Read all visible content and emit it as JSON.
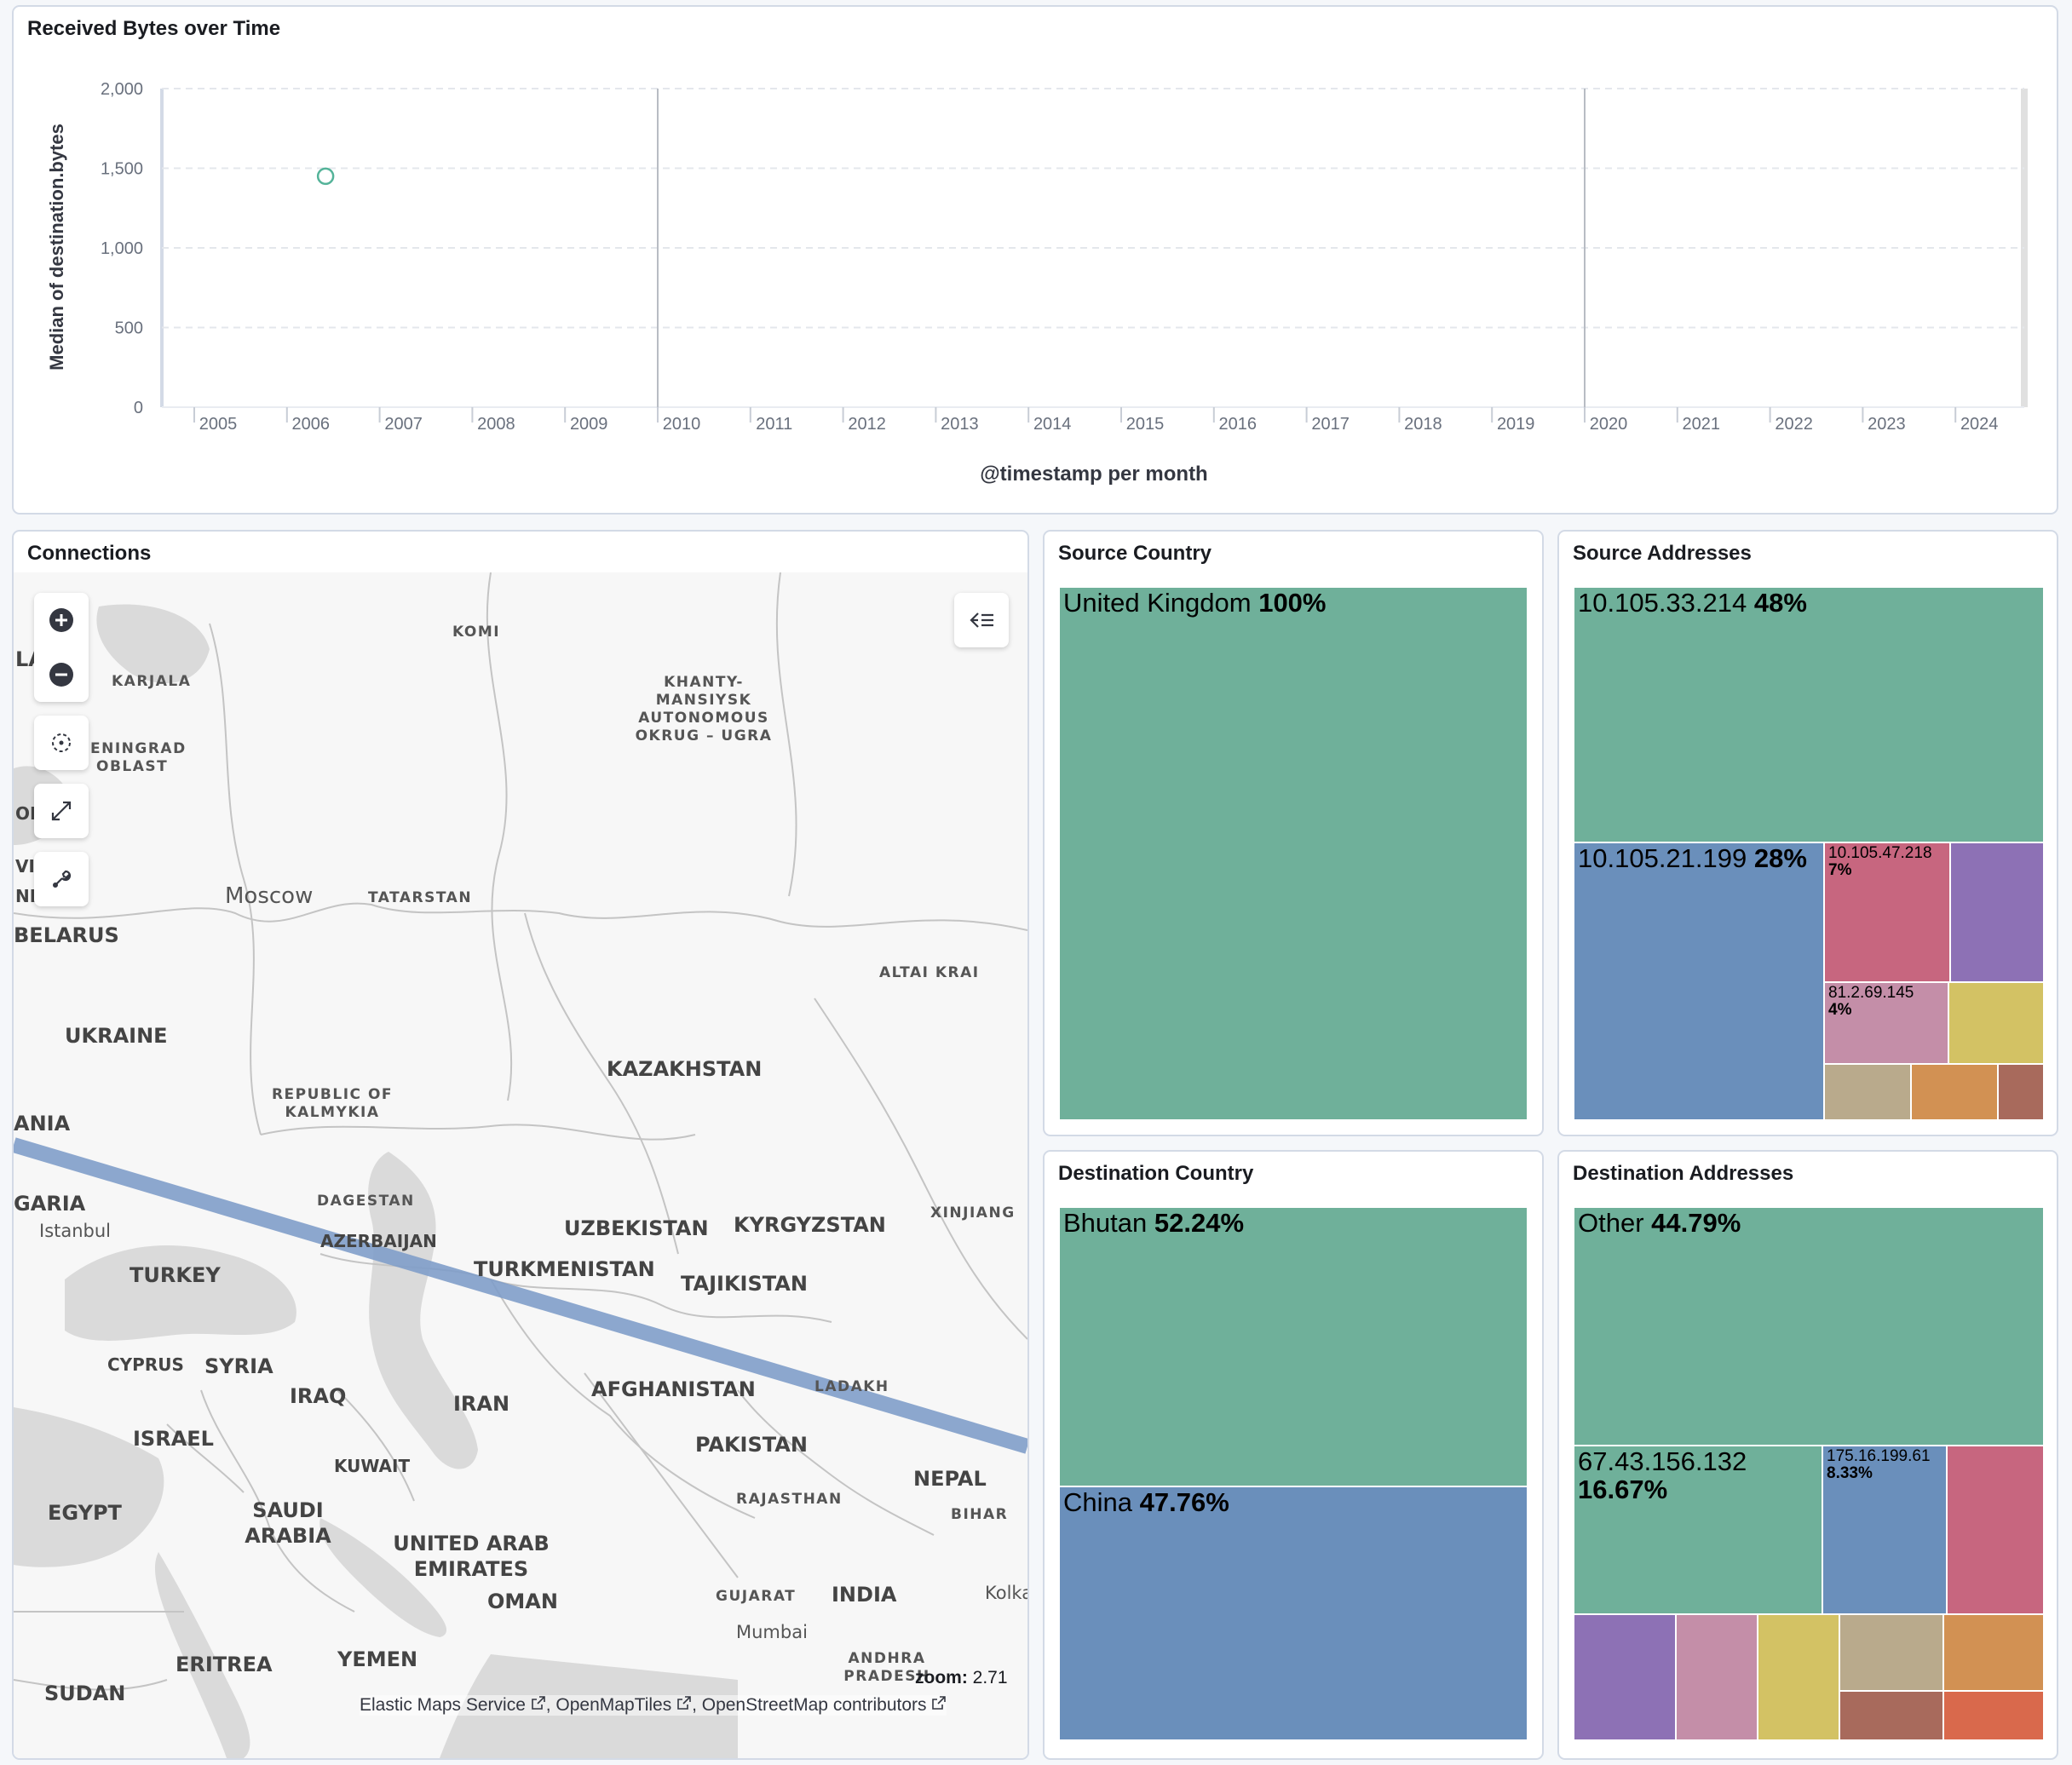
{
  "line_panel": {
    "title": "Received Bytes over Time"
  },
  "chart_data": {
    "type": "scatter",
    "title": "Received Bytes over Time",
    "xlabel": "@timestamp per month",
    "ylabel": "Median of destination.bytes",
    "x_ticks": [
      "2005",
      "2006",
      "2007",
      "2008",
      "2009",
      "2010",
      "2011",
      "2012",
      "2013",
      "2014",
      "2015",
      "2016",
      "2017",
      "2018",
      "2019",
      "2020",
      "2021",
      "2022",
      "2023",
      "2024"
    ],
    "y_ticks": [
      "0",
      "500",
      "1,000",
      "1,500",
      "2,000"
    ],
    "ylim": [
      0,
      2000
    ],
    "grid": true,
    "series": [
      {
        "x": [
          "2006-06"
        ],
        "values": [
          1450
        ]
      }
    ],
    "colors": {
      "point": "#54b399"
    }
  },
  "map_panel": {
    "title": "Connections",
    "zoom_label": "zoom:",
    "zoom_value": "2.71",
    "attribution": [
      "Elastic Maps Service",
      "OpenMapTiles",
      "OpenStreetMap contributors"
    ],
    "labels": {
      "komi": "KOMI",
      "karjala": "KARJALA",
      "khanty": [
        "KHANTY-",
        "MANSIYSK",
        "AUTONOMOUS",
        "OKRUG – UGRA"
      ],
      "leningrad": [
        "ENINGRAD",
        "OBLAST"
      ],
      "moscow": "Moscow",
      "tatarstan": "TATARSTAN",
      "altai": "ALTAI KRAI",
      "belarus": "BELARUS",
      "ukraine": "UKRAINE",
      "kazakhstan": "KAZAKHSTAN",
      "kalmykia": [
        "REPUBLIC OF",
        "KALMYKIA"
      ],
      "dagestan": "DAGESTAN",
      "azerbaijan": "AZERBAIJAN",
      "uzbekistan": "UZBEKISTAN",
      "kyrgyzstan": "KYRGYZSTAN",
      "xinjiang": "XINJIANG",
      "turkmenistan": "TURKMENISTAN",
      "tajikistan": "TAJIKISTAN",
      "istanbul": "Istanbul",
      "turkey": "TURKEY",
      "cyprus": "CYPRUS",
      "syria": "SYRIA",
      "iraq": "IRAQ",
      "iran": "IRAN",
      "afghanistan": "AFGHANISTAN",
      "ladakh": "LADAKH",
      "israel": "ISRAEL",
      "kuwait": "KUWAIT",
      "pakistan": "PAKISTAN",
      "nepal": "NEPAL",
      "egypt": "EGYPT",
      "saudi": [
        "SAUDI",
        "ARABIA"
      ],
      "uae": [
        "UNITED ARAB",
        "EMIRATES"
      ],
      "rajasthan": "RAJASTHAN",
      "bihar": "BIHAR",
      "oman": "OMAN",
      "gujarat": "GUJARAT",
      "india": "INDIA",
      "kolka": "Kolka",
      "mumbai": "Mumbai",
      "yemen": "YEMEN",
      "eritrea": "ERITREA",
      "sudan": "SUDAN",
      "andhra": [
        "ANDHRA",
        "PRADESH"
      ],
      "la": "LA",
      "on": "ON",
      "via": "VIA",
      "nia": "NIA",
      "ania": "ANIA",
      "garia": "GARIA"
    }
  },
  "source_country": {
    "title": "Source Country",
    "cells": [
      {
        "label": "United Kingdom",
        "pct": "100%",
        "color": "#6fb09a"
      }
    ]
  },
  "source_addresses": {
    "title": "Source Addresses",
    "cells": [
      {
        "label": "10.105.33.214",
        "pct": "48%",
        "color": "#6fb09a"
      },
      {
        "label": "10.105.21.199",
        "pct": "28%",
        "color": "#6a8fbb"
      },
      {
        "label": "10.105.47.218",
        "pct": "7%",
        "color": "#c7667f"
      },
      {
        "label": "",
        "pct": "",
        "color": "#8d71b5"
      },
      {
        "label": "81.2.69.145",
        "pct": "4%",
        "color": "#c48ea8"
      },
      {
        "label": "",
        "pct": "",
        "color": "#d3c264"
      },
      {
        "label": "",
        "pct": "",
        "color": "#b9aa8c"
      },
      {
        "label": "",
        "pct": "",
        "color": "#d29153"
      },
      {
        "label": "",
        "pct": "",
        "color": "#a86a5c"
      }
    ]
  },
  "destination_country": {
    "title": "Destination Country",
    "cells": [
      {
        "label": "Bhutan",
        "pct": "52.24%",
        "color": "#6fb09a"
      },
      {
        "label": "China",
        "pct": "47.76%",
        "color": "#6a8fbb"
      }
    ]
  },
  "destination_addresses": {
    "title": "Destination Addresses",
    "cells": [
      {
        "label": "Other",
        "pct": "44.79%",
        "color": "#6fb09a"
      },
      {
        "label": "67.43.156.132",
        "pct": "16.67%",
        "color": "#6fb09a"
      },
      {
        "label": "175.16.199.61",
        "pct": "8.33%",
        "color": "#6a8fbb"
      },
      {
        "label": "",
        "pct": "",
        "color": "#c7667f"
      },
      {
        "label": "",
        "pct": "",
        "color": "#8d71b5"
      },
      {
        "label": "",
        "pct": "",
        "color": "#c48ea8"
      },
      {
        "label": "",
        "pct": "",
        "color": "#d3c264"
      },
      {
        "label": "",
        "pct": "",
        "color": "#b9aa8c"
      },
      {
        "label": "",
        "pct": "",
        "color": "#d29153"
      },
      {
        "label": "",
        "pct": "",
        "color": "#a86a5c"
      },
      {
        "label": "",
        "pct": "",
        "color": "#d9694c"
      }
    ]
  },
  "icons": {
    "zoom_in": "plus-circle-icon",
    "zoom_out": "minus-circle-icon",
    "set_view": "crosshair-icon",
    "fit": "expand-icon",
    "tools": "wrench-icon",
    "legend": "collapse-legend-icon",
    "external": "external-link-icon"
  }
}
